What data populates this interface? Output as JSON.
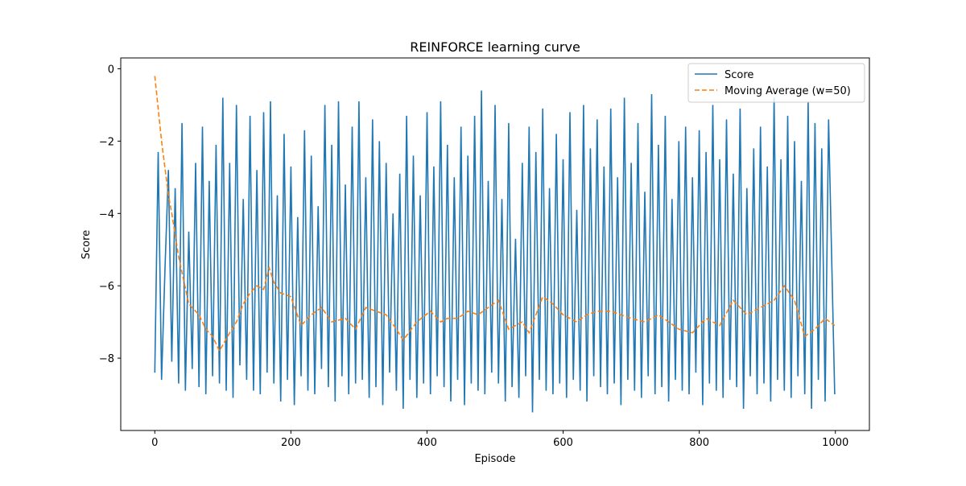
{
  "chart_data": {
    "type": "line",
    "title": "REINFORCE learning curve",
    "x_label": "Episode",
    "y_label": "Score",
    "xlim": [
      -50,
      1050
    ],
    "ylim": [
      -10,
      0.3
    ],
    "xticks": [
      0,
      200,
      400,
      600,
      800,
      1000
    ],
    "yticks": [
      0,
      {
        "value": -2,
        "label": "−2"
      },
      {
        "value": -4,
        "label": "−4"
      },
      {
        "value": -6,
        "label": "−6"
      },
      {
        "value": -8,
        "label": "−8"
      }
    ],
    "legend": "upper right",
    "series": [
      {
        "name": "Score",
        "color": "#1f77b4",
        "dash": false,
        "x": [
          0,
          5,
          10,
          15,
          20,
          25,
          30,
          35,
          40,
          45,
          50,
          55,
          60,
          65,
          70,
          75,
          80,
          85,
          90,
          95,
          100,
          105,
          110,
          115,
          120,
          125,
          130,
          135,
          140,
          145,
          150,
          155,
          160,
          165,
          170,
          175,
          180,
          185,
          190,
          195,
          200,
          205,
          210,
          215,
          220,
          225,
          230,
          235,
          240,
          245,
          250,
          255,
          260,
          265,
          270,
          275,
          280,
          285,
          290,
          295,
          300,
          305,
          310,
          315,
          320,
          325,
          330,
          335,
          340,
          345,
          350,
          355,
          360,
          365,
          370,
          375,
          380,
          385,
          390,
          395,
          400,
          405,
          410,
          415,
          420,
          425,
          430,
          435,
          440,
          445,
          450,
          455,
          460,
          465,
          470,
          475,
          480,
          485,
          490,
          495,
          500,
          505,
          510,
          515,
          520,
          525,
          530,
          535,
          540,
          545,
          550,
          555,
          560,
          565,
          570,
          575,
          580,
          585,
          590,
          595,
          600,
          605,
          610,
          615,
          620,
          625,
          630,
          635,
          640,
          645,
          650,
          655,
          660,
          665,
          670,
          675,
          680,
          685,
          690,
          695,
          700,
          705,
          710,
          715,
          720,
          725,
          730,
          735,
          740,
          745,
          750,
          755,
          760,
          765,
          770,
          775,
          780,
          785,
          790,
          795,
          800,
          805,
          810,
          815,
          820,
          825,
          830,
          835,
          840,
          845,
          850,
          855,
          860,
          865,
          870,
          875,
          880,
          885,
          890,
          895,
          900,
          905,
          910,
          915,
          920,
          925,
          930,
          935,
          940,
          945,
          950,
          955,
          960,
          965,
          970,
          975,
          980,
          985,
          990,
          999
        ],
        "values": [
          -8.4,
          -2.3,
          -8.6,
          -5.5,
          -2.8,
          -8.1,
          -3.3,
          -8.7,
          -1.5,
          -8.9,
          -4.5,
          -8.3,
          -2.6,
          -8.8,
          -1.6,
          -9.0,
          -3.1,
          -8.5,
          -2.1,
          -8.7,
          -0.8,
          -8.9,
          -2.6,
          -9.1,
          -1.0,
          -8.2,
          -3.6,
          -8.6,
          -1.3,
          -8.9,
          -2.8,
          -9.0,
          -1.2,
          -8.4,
          -0.9,
          -8.7,
          -3.5,
          -9.2,
          -1.8,
          -8.6,
          -2.7,
          -9.3,
          -4.1,
          -8.5,
          -1.7,
          -8.9,
          -2.4,
          -9.0,
          -3.8,
          -8.3,
          -1.0,
          -8.8,
          -2.1,
          -9.2,
          -0.9,
          -8.5,
          -3.2,
          -9.0,
          -1.6,
          -8.7,
          -0.9,
          -8.6,
          -3.0,
          -9.1,
          -1.4,
          -8.8,
          -2.0,
          -9.3,
          -2.6,
          -8.4,
          -4.0,
          -8.9,
          -2.9,
          -9.4,
          -1.3,
          -8.6,
          -2.4,
          -9.1,
          -3.5,
          -8.7,
          -1.2,
          -9.0,
          -2.7,
          -8.5,
          -0.9,
          -8.8,
          -2.1,
          -9.2,
          -3.0,
          -8.6,
          -1.6,
          -9.3,
          -2.4,
          -8.7,
          -1.3,
          -8.9,
          -0.6,
          -9.0,
          -3.1,
          -8.4,
          -1.0,
          -8.7,
          -3.6,
          -9.2,
          -1.5,
          -8.8,
          -4.7,
          -9.1,
          -2.6,
          -8.5,
          -1.6,
          -9.5,
          -2.3,
          -8.6,
          -1.1,
          -8.9,
          -3.3,
          -9.0,
          -1.8,
          -8.7,
          -2.5,
          -9.1,
          -1.2,
          -8.6,
          -3.9,
          -8.9,
          -1.0,
          -9.2,
          -2.2,
          -8.5,
          -1.4,
          -8.8,
          -2.7,
          -9.0,
          -1.1,
          -8.7,
          -3.0,
          -9.3,
          -0.8,
          -8.6,
          -2.6,
          -8.9,
          -1.5,
          -9.1,
          -3.4,
          -8.5,
          -0.7,
          -9.0,
          -2.1,
          -8.8,
          -1.3,
          -9.2,
          -3.6,
          -8.6,
          -2.0,
          -8.9,
          -1.6,
          -9.0,
          -3.0,
          -8.4,
          -1.7,
          -9.3,
          -2.3,
          -8.7,
          -1.0,
          -8.9,
          -2.5,
          -9.1,
          -1.4,
          -8.6,
          -2.9,
          -8.8,
          -1.1,
          -9.4,
          -3.3,
          -8.5,
          -2.2,
          -9.0,
          -1.6,
          -8.7,
          -2.7,
          -9.2,
          -0.8,
          -8.6,
          -2.5,
          -8.9,
          -1.3,
          -9.1,
          -2.0,
          -8.5,
          -3.1,
          -9.0,
          -0.9,
          -9.4,
          -1.5,
          -8.6,
          -2.2,
          -9.2,
          -1.4,
          -9.0
        ]
      },
      {
        "name": "Moving Average (w=50)",
        "color": "#ff7f0e",
        "dash": true,
        "x": [
          0,
          10,
          20,
          25,
          35,
          50,
          65,
          75,
          85,
          95,
          110,
          120,
          130,
          140,
          150,
          160,
          168,
          175,
          185,
          200,
          215,
          230,
          245,
          260,
          280,
          295,
          310,
          325,
          340,
          355,
          365,
          385,
          405,
          420,
          430,
          445,
          460,
          475,
          490,
          505,
          520,
          540,
          550,
          570,
          585,
          600,
          620,
          635,
          650,
          670,
          685,
          700,
          720,
          740,
          755,
          770,
          790,
          810,
          830,
          850,
          870,
          890,
          910,
          925,
          940,
          955,
          970,
          985,
          999
        ],
        "values": [
          -0.2,
          -2.0,
          -3.5,
          -4.0,
          -5.2,
          -6.5,
          -6.8,
          -7.2,
          -7.4,
          -7.8,
          -7.3,
          -7.0,
          -6.5,
          -6.2,
          -6.0,
          -6.1,
          -5.5,
          -5.9,
          -6.2,
          -6.3,
          -7.1,
          -6.8,
          -6.6,
          -7.0,
          -6.9,
          -7.2,
          -6.6,
          -6.7,
          -6.8,
          -7.2,
          -7.5,
          -7.0,
          -6.7,
          -7.0,
          -6.9,
          -6.9,
          -6.7,
          -6.8,
          -6.6,
          -6.4,
          -7.2,
          -7.0,
          -7.3,
          -6.3,
          -6.5,
          -6.8,
          -7.0,
          -6.8,
          -6.7,
          -6.7,
          -6.8,
          -6.9,
          -7.0,
          -6.8,
          -7.0,
          -7.2,
          -7.3,
          -6.9,
          -7.1,
          -6.4,
          -6.8,
          -6.6,
          -6.4,
          -6.0,
          -6.4,
          -7.4,
          -7.2,
          -6.9,
          -7.1
        ]
      }
    ]
  }
}
